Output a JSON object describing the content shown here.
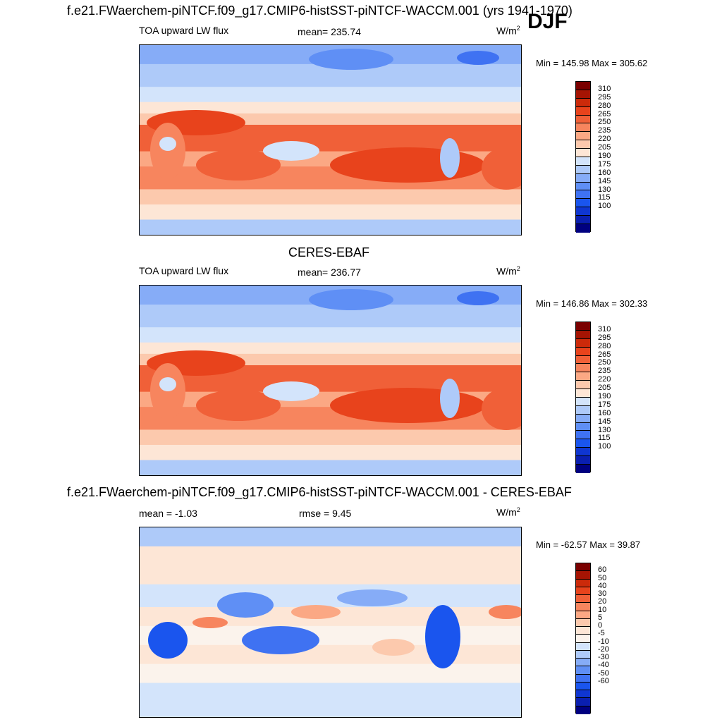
{
  "title": "f.e21.FWaerchem-piNTCF.f09_g17.CMIP6-histSST-piNTCF-WACCM.001 (yrs 1941-1970)",
  "season": "DJF",
  "colors": {
    "abs_palette": [
      "#000080",
      "#0a1fb0",
      "#0f36d1",
      "#1a55ee",
      "#3f72f2",
      "#5f8ff5",
      "#86acf7",
      "#aecaf9",
      "#d3e4fb",
      "#fde6d6",
      "#fcc9ad",
      "#fba884",
      "#f7855e",
      "#f06038",
      "#e8431c",
      "#cc2a0a",
      "#a51403",
      "#7a0000"
    ],
    "diff_palette": [
      "#000080",
      "#0a1fb0",
      "#0f36d1",
      "#1a55ee",
      "#3f72f2",
      "#5f8ff5",
      "#86acf7",
      "#aecaf9",
      "#d3e4fb",
      "#fbf3ec",
      "#fde6d6",
      "#fcc9ad",
      "#fba884",
      "#f7855e",
      "#f06038",
      "#e8431c",
      "#cc2a0a",
      "#a51403",
      "#7a0000"
    ]
  },
  "panels": [
    {
      "id": "model",
      "title": "",
      "left_label": "TOA upward LW flux",
      "mid_label": "mean= 235.74",
      "units": "W/m",
      "units_sup": "2",
      "minmax": "Min = 145.98 Max = 305.62",
      "levels": [
        "310",
        "295",
        "280",
        "265",
        "250",
        "235",
        "220",
        "205",
        "190",
        "175",
        "160",
        "145",
        "130",
        "115",
        "100"
      ]
    },
    {
      "id": "obs",
      "title": "CERES-EBAF",
      "left_label": "TOA upward LW flux",
      "mid_label": "mean= 236.77",
      "units": "W/m",
      "units_sup": "2",
      "minmax": "Min = 146.86 Max = 302.33",
      "levels": [
        "310",
        "295",
        "280",
        "265",
        "250",
        "235",
        "220",
        "205",
        "190",
        "175",
        "160",
        "145",
        "130",
        "115",
        "100"
      ]
    },
    {
      "id": "diff",
      "title": "f.e21.FWaerchem-piNTCF.f09_g17.CMIP6-histSST-piNTCF-WACCM.001 - CERES-EBAF",
      "left_label": "mean =  -1.03",
      "mid_label": "rmse =   9.45",
      "units": "W/m",
      "units_sup": "2",
      "minmax": "Min = -62.57 Max =  39.87",
      "levels": [
        "60",
        "50",
        "40",
        "30",
        "20",
        "10",
        "5",
        "0",
        "-5",
        "-10",
        "-20",
        "-30",
        "-40",
        "-50",
        "-60"
      ]
    }
  ],
  "chart_data": [
    {
      "type": "heatmap",
      "title": "",
      "variable": "TOA upward LW flux",
      "mean": 235.74,
      "min": 145.98,
      "max": 305.62,
      "units": "W/m2",
      "contour_levels": [
        100,
        115,
        130,
        145,
        160,
        175,
        190,
        205,
        220,
        235,
        250,
        265,
        280,
        295,
        310
      ]
    },
    {
      "type": "heatmap",
      "title": "CERES-EBAF",
      "variable": "TOA upward LW flux",
      "mean": 236.77,
      "min": 146.86,
      "max": 302.33,
      "units": "W/m2",
      "contour_levels": [
        100,
        115,
        130,
        145,
        160,
        175,
        190,
        205,
        220,
        235,
        250,
        265,
        280,
        295,
        310
      ]
    },
    {
      "type": "heatmap",
      "title": "f.e21.FWaerchem-piNTCF.f09_g17.CMIP6-histSST-piNTCF-WACCM.001 - CERES-EBAF",
      "mean": -1.03,
      "rmse": 9.45,
      "min": -62.57,
      "max": 39.87,
      "units": "W/m2",
      "contour_levels": [
        -60,
        -50,
        -40,
        -30,
        -20,
        -10,
        -5,
        0,
        5,
        10,
        20,
        30,
        40,
        50,
        60
      ]
    }
  ]
}
